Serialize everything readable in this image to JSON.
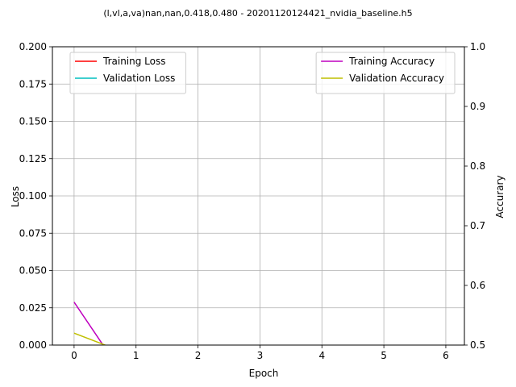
{
  "chart_data": {
    "type": "line",
    "title": "(l,vl,a,va)nan,nan,0.418,0.480 - 20201120124421_nvidia_baseline.h5",
    "xlabel": "Epoch",
    "ylabel": "Loss",
    "y2label": "Accurary",
    "xlim": [
      -0.35,
      6.3
    ],
    "ylim": [
      0,
      0.2
    ],
    "y2lim": [
      0.5,
      1.0
    ],
    "xticks": [
      "0",
      "1",
      "2",
      "3",
      "4",
      "5",
      "6"
    ],
    "yticks": [
      "0.000",
      "0.025",
      "0.050",
      "0.075",
      "0.100",
      "0.125",
      "0.150",
      "0.175",
      "0.200"
    ],
    "y2ticks": [
      "0.5",
      "0.6",
      "0.7",
      "0.8",
      "0.9",
      "1.0"
    ],
    "grid": true,
    "legends": [
      {
        "placement": "top-left",
        "axis": "left",
        "entries": [
          "Training Loss",
          "Validation Loss"
        ]
      },
      {
        "placement": "top-right",
        "axis": "right",
        "entries": [
          "Training Accuracy",
          "Validation Accuracy"
        ]
      }
    ],
    "series": [
      {
        "name": "Training Loss",
        "axis": "left",
        "color": "#ff0000",
        "x": [],
        "y": []
      },
      {
        "name": "Validation Loss",
        "axis": "left",
        "color": "#00bfbf",
        "x": [],
        "y": []
      },
      {
        "name": "Training Accuracy",
        "axis": "right",
        "color": "#bf00bf",
        "x": [
          0,
          1
        ],
        "y": [
          0.572,
          0.418
        ]
      },
      {
        "name": "Validation Accuracy",
        "axis": "right",
        "color": "#bfbf00",
        "x": [
          0,
          1
        ],
        "y": [
          0.52,
          0.48
        ]
      }
    ]
  }
}
